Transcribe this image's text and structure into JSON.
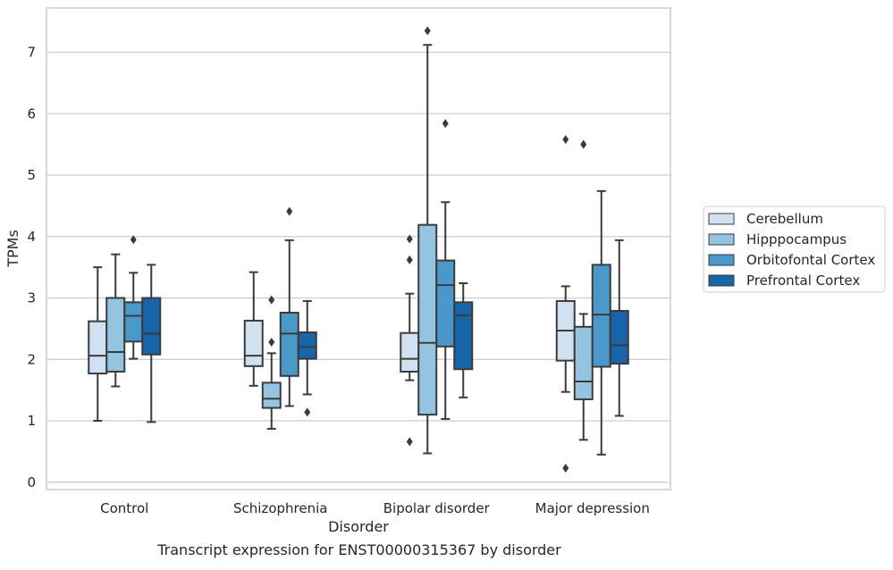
{
  "chart_data": {
    "type": "boxplot",
    "caption": "Transcript expression for ENST00000315367 by disorder",
    "xlabel": "Disorder",
    "ylabel": "TPMs",
    "ylim": [
      -0.12,
      7.72
    ],
    "yticks": [
      0,
      1,
      2,
      3,
      4,
      5,
      6,
      7
    ],
    "grid": true,
    "legend_position": "right",
    "categories": [
      "Control",
      "Schizophrenia",
      "Bipolar disorder",
      "Major depression"
    ],
    "series": [
      {
        "name": "Cerebellum",
        "color": "#d0e1f2",
        "boxes": [
          {
            "whislo": 1.0,
            "q1": 1.77,
            "med": 2.06,
            "q3": 2.62,
            "whishi": 3.5,
            "fliers": []
          },
          {
            "whislo": 1.57,
            "q1": 1.89,
            "med": 2.06,
            "q3": 2.63,
            "whishi": 3.42,
            "fliers": []
          },
          {
            "whislo": 1.66,
            "q1": 1.8,
            "med": 2.01,
            "q3": 2.43,
            "whishi": 3.07,
            "fliers": [
              3.96,
              3.62,
              0.66
            ]
          },
          {
            "whislo": 1.47,
            "q1": 1.98,
            "med": 2.47,
            "q3": 2.95,
            "whishi": 3.19,
            "fliers": [
              5.58,
              0.23
            ]
          }
        ]
      },
      {
        "name": "Hipppocampus",
        "color": "#94c4df",
        "boxes": [
          {
            "whislo": 1.56,
            "q1": 1.8,
            "med": 2.12,
            "q3": 3.0,
            "whishi": 3.71,
            "fliers": []
          },
          {
            "whislo": 0.87,
            "q1": 1.21,
            "med": 1.36,
            "q3": 1.62,
            "whishi": 2.1,
            "fliers": [
              2.97,
              2.28
            ]
          },
          {
            "whislo": 0.47,
            "q1": 1.1,
            "med": 2.27,
            "q3": 4.19,
            "whishi": 7.12,
            "fliers": [
              7.35
            ]
          },
          {
            "whislo": 0.69,
            "q1": 1.35,
            "med": 1.64,
            "q3": 2.53,
            "whishi": 2.74,
            "fliers": [
              5.5
            ]
          }
        ]
      },
      {
        "name": "Orbitofontal Cortex",
        "color": "#4a98c9",
        "boxes": [
          {
            "whislo": 2.01,
            "q1": 2.29,
            "med": 2.71,
            "q3": 2.93,
            "whishi": 3.41,
            "fliers": [
              3.95
            ]
          },
          {
            "whislo": 1.24,
            "q1": 1.73,
            "med": 2.42,
            "q3": 2.76,
            "whishi": 3.94,
            "fliers": [
              4.41
            ]
          },
          {
            "whislo": 1.03,
            "q1": 2.21,
            "med": 3.21,
            "q3": 3.61,
            "whishi": 4.56,
            "fliers": [
              5.84
            ]
          },
          {
            "whislo": 0.45,
            "q1": 1.88,
            "med": 2.73,
            "q3": 3.54,
            "whishi": 4.74,
            "fliers": []
          }
        ]
      },
      {
        "name": "Prefrontal Cortex",
        "color": "#1764ab",
        "boxes": [
          {
            "whislo": 0.98,
            "q1": 2.08,
            "med": 2.42,
            "q3": 3.0,
            "whishi": 3.54,
            "fliers": []
          },
          {
            "whislo": 1.43,
            "q1": 2.01,
            "med": 2.2,
            "q3": 2.44,
            "whishi": 2.95,
            "fliers": [
              1.14
            ]
          },
          {
            "whislo": 1.38,
            "q1": 1.84,
            "med": 2.72,
            "q3": 2.93,
            "whishi": 3.24,
            "fliers": []
          },
          {
            "whislo": 1.08,
            "q1": 1.93,
            "med": 2.23,
            "q3": 2.79,
            "whishi": 3.94,
            "fliers": []
          }
        ]
      }
    ]
  }
}
